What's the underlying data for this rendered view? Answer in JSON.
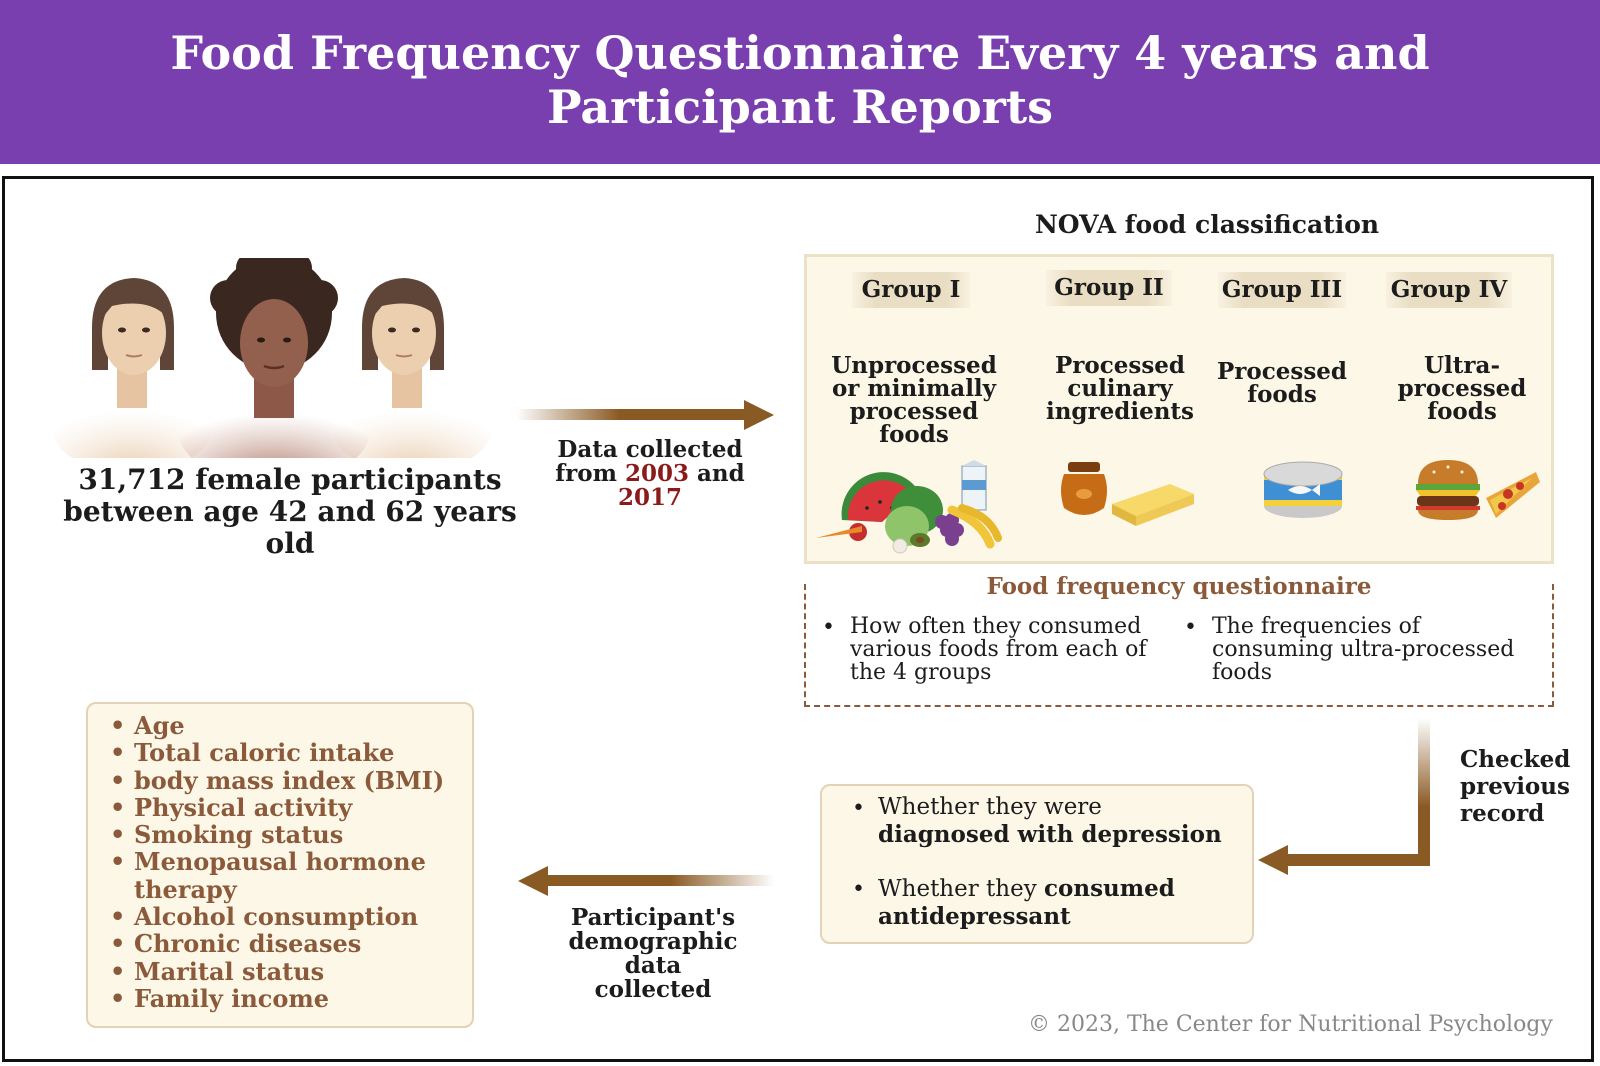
{
  "header": {
    "title_line1": "Food Frequency Questionnaire Every 4 years and",
    "title_line2": "Participant Reports",
    "background_color": "#7a3fae"
  },
  "participants": {
    "line1": "31,712 female participants",
    "line2": "between age 42 and 62 years old"
  },
  "arrow_collect": {
    "line1": "Data collected",
    "line2_prefix": "from ",
    "year_start": "2003",
    "line2_suffix": " and",
    "year_end": "2017"
  },
  "nova": {
    "title": "NOVA food classification",
    "groups": [
      {
        "label": "Group I",
        "desc": [
          "Unprocessed",
          "or minimally",
          "processed",
          "foods"
        ],
        "icon": "fresh-produce-icon"
      },
      {
        "label": "Group II",
        "desc": [
          "Processed",
          "culinary",
          "ingredients"
        ],
        "icon": "honey-butter-icon"
      },
      {
        "label": "Group III",
        "desc": [
          "Processed",
          "foods"
        ],
        "icon": "canned-fish-icon"
      },
      {
        "label": "Group IV",
        "desc": [
          "Ultra-",
          "processed",
          "foods"
        ],
        "icon": "burger-pizza-icon"
      }
    ]
  },
  "ffq": {
    "title": "Food frequency questionnaire",
    "items": [
      [
        "How often they consumed",
        "various foods from each of",
        "the 4 groups"
      ],
      [
        "The frequencies of",
        "consuming ultra-processed",
        "foods"
      ]
    ]
  },
  "checked": {
    "line1": "Checked",
    "line2": "previous",
    "line3": "record"
  },
  "depression": {
    "item1_plain": "Whether they were",
    "item1_bold": "diagnosed with depression",
    "item2_plain": "Whether they ",
    "item2_bold1": "consumed",
    "item2_bold2": "antidepressant"
  },
  "arrow_demo": {
    "line1": "Participant's",
    "line2": "demographic data",
    "line3": "collected"
  },
  "demographics": {
    "items": [
      "Age",
      "Total caloric intake",
      "body mass index (BMI)",
      "Physical activity",
      "Smoking status",
      "Menopausal hormone",
      "therapy",
      "Alcohol consumption",
      "Chronic diseases",
      "Marital status",
      "Family income"
    ]
  },
  "copyright": "© 2023, The Center for Nutritional Psychology",
  "colors": {
    "accent_brown": "#8b5a3a",
    "arrow_brown": "#8a5a24",
    "box_fill": "#fdf7e8",
    "year_red": "#8c1a1a"
  }
}
